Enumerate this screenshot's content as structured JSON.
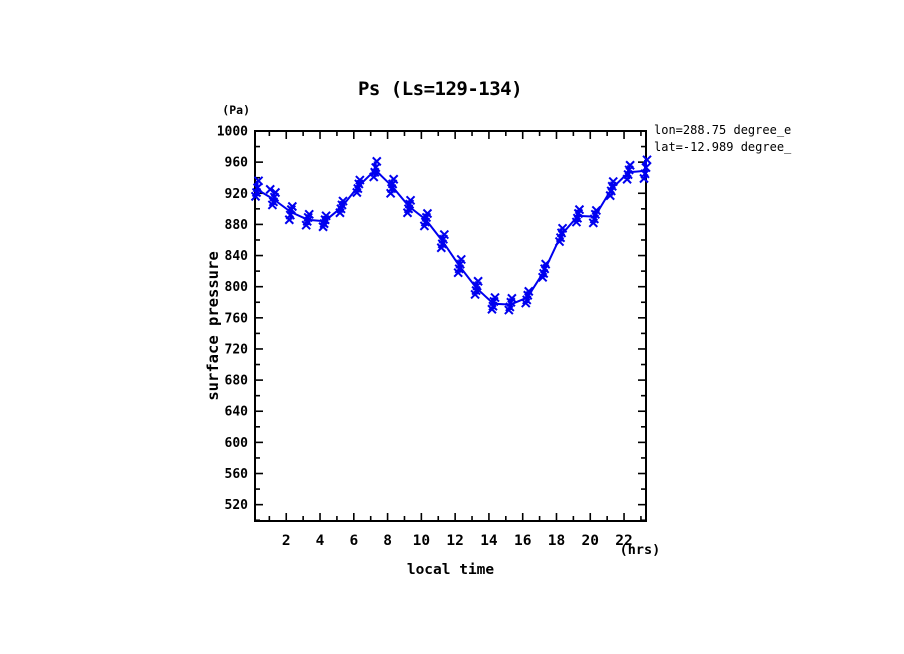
{
  "chart_data": {
    "type": "scatter",
    "title": "Ps (Ls=129-134)",
    "xlabel": "local time",
    "ylabel": "surface pressure",
    "y_unit_label": "(Pa)",
    "x_unit_label": "(hrs)",
    "annotation_lines": [
      "lon=288.75 degree_e",
      "lat=-12.989 degree_"
    ],
    "series_color": "#0000EF",
    "axis_color": "#000000",
    "xlim": [
      0.15,
      23.3
    ],
    "ylim": [
      499,
      1000
    ],
    "x_major_ticks": [
      2,
      4,
      6,
      8,
      10,
      12,
      14,
      16,
      18,
      20,
      22
    ],
    "x_minor_ticks": [
      1,
      3,
      5,
      7,
      9,
      11,
      13,
      15,
      17,
      19,
      21,
      23
    ],
    "y_major_ticks": [
      520,
      560,
      600,
      640,
      680,
      720,
      760,
      800,
      840,
      880,
      920,
      960,
      1000
    ],
    "y_minor_ticks": [
      500,
      540,
      580,
      620,
      660,
      700,
      740,
      780,
      820,
      860,
      900,
      940,
      980
    ],
    "grid": false,
    "legend": false,
    "marker": "x",
    "points": [
      {
        "t": 0.27,
        "mean": 925,
        "samples": [
          916,
          921,
          927,
          936
        ]
      },
      {
        "t": 1.27,
        "mean": 912,
        "samples": [
          905,
          909,
          915,
          921
        ]
      },
      {
        "t": 2.27,
        "mean": 896,
        "samples": [
          886,
          892,
          899,
          903
        ]
      },
      {
        "t": 3.27,
        "mean": 886,
        "samples": [
          879,
          884,
          889,
          893
        ]
      },
      {
        "t": 4.27,
        "mean": 884,
        "samples": [
          877,
          881,
          886,
          891
        ]
      },
      {
        "t": 5.27,
        "mean": 902,
        "samples": [
          895,
          900,
          905,
          910
        ]
      },
      {
        "t": 6.27,
        "mean": 929,
        "samples": [
          921,
          926,
          932,
          937
        ]
      },
      {
        "t": 7.27,
        "mean": 950,
        "samples": [
          941,
          947,
          953,
          961
        ]
      },
      {
        "t": 8.27,
        "mean": 929,
        "samples": [
          920,
          926,
          932,
          938
        ]
      },
      {
        "t": 9.27,
        "mean": 903,
        "samples": [
          895,
          900,
          906,
          911
        ]
      },
      {
        "t": 10.27,
        "mean": 886,
        "samples": [
          878,
          883,
          889,
          894
        ]
      },
      {
        "t": 11.27,
        "mean": 858,
        "samples": [
          850,
          855,
          861,
          867
        ]
      },
      {
        "t": 12.27,
        "mean": 826,
        "samples": [
          818,
          823,
          829,
          835
        ]
      },
      {
        "t": 13.27,
        "mean": 798,
        "samples": [
          790,
          795,
          801,
          807
        ]
      },
      {
        "t": 14.27,
        "mean": 778,
        "samples": [
          771,
          775,
          781,
          786
        ]
      },
      {
        "t": 15.27,
        "mean": 777,
        "samples": [
          770,
          774,
          780,
          785
        ]
      },
      {
        "t": 16.27,
        "mean": 786,
        "samples": [
          779,
          783,
          789,
          794
        ]
      },
      {
        "t": 17.27,
        "mean": 820,
        "samples": [
          812,
          817,
          823,
          829
        ]
      },
      {
        "t": 18.27,
        "mean": 866,
        "samples": [
          858,
          863,
          869,
          875
        ]
      },
      {
        "t": 19.27,
        "mean": 891,
        "samples": [
          883,
          888,
          894,
          899
        ]
      },
      {
        "t": 20.27,
        "mean": 890,
        "samples": [
          882,
          887,
          893,
          898
        ]
      },
      {
        "t": 21.27,
        "mean": 926,
        "samples": [
          917,
          923,
          929,
          935
        ]
      },
      {
        "t": 22.27,
        "mean": 947,
        "samples": [
          938,
          944,
          950,
          956
        ]
      },
      {
        "t": 23.27,
        "mean": 949,
        "samples": [
          939,
          945,
          953,
          963
        ]
      }
    ],
    "extra_markers": [
      {
        "t": 1.05,
        "p": 925
      }
    ]
  }
}
